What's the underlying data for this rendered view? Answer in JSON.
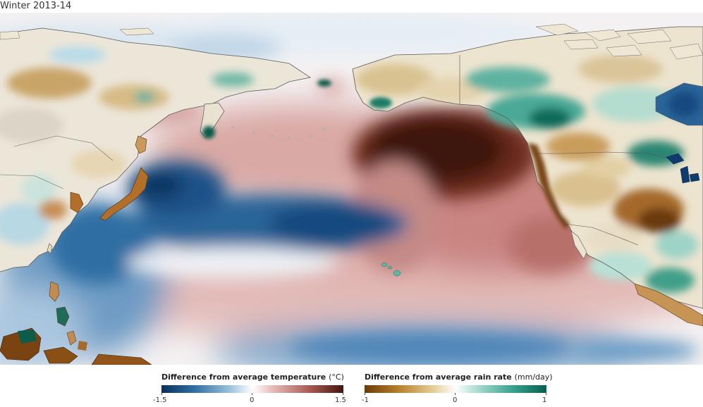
{
  "title": "Winter 2013-14",
  "legend_temperature": {
    "label": "Difference from average temperature",
    "unit": "(°C)",
    "min": "-1.5",
    "mid": "0",
    "max": "1.5",
    "colors": [
      "#0b2f5a",
      "#2f6ea3",
      "#9ec4dd",
      "#ffffff",
      "#e3b7b3",
      "#a85750",
      "#3e1710"
    ]
  },
  "legend_rain": {
    "label": "Difference from average rain rate",
    "unit": "(mm/day)",
    "min": "-1",
    "mid": "0",
    "max": "1",
    "colors": [
      "#6b3a08",
      "#b57d27",
      "#e6cf98",
      "#ffffff",
      "#a7ddd0",
      "#35a08c",
      "#05604d"
    ]
  },
  "map": {
    "ocean_colors": {
      "warm_dark": "#3c150c",
      "warm_mid": "#a9605a",
      "warm_light": "#e7c4c2",
      "cool_dark": "#0f3c6d",
      "cool_mid": "#3f7fb2",
      "cool_light": "#b3d2e6"
    },
    "land_colors": {
      "dry_dark": "#7a4412",
      "dry_mid": "#c9a26a",
      "dry_light": "#ead9b8",
      "wet_dark": "#0d6b58",
      "wet_mid": "#4aa996",
      "wet_light": "#bfe3da"
    }
  }
}
